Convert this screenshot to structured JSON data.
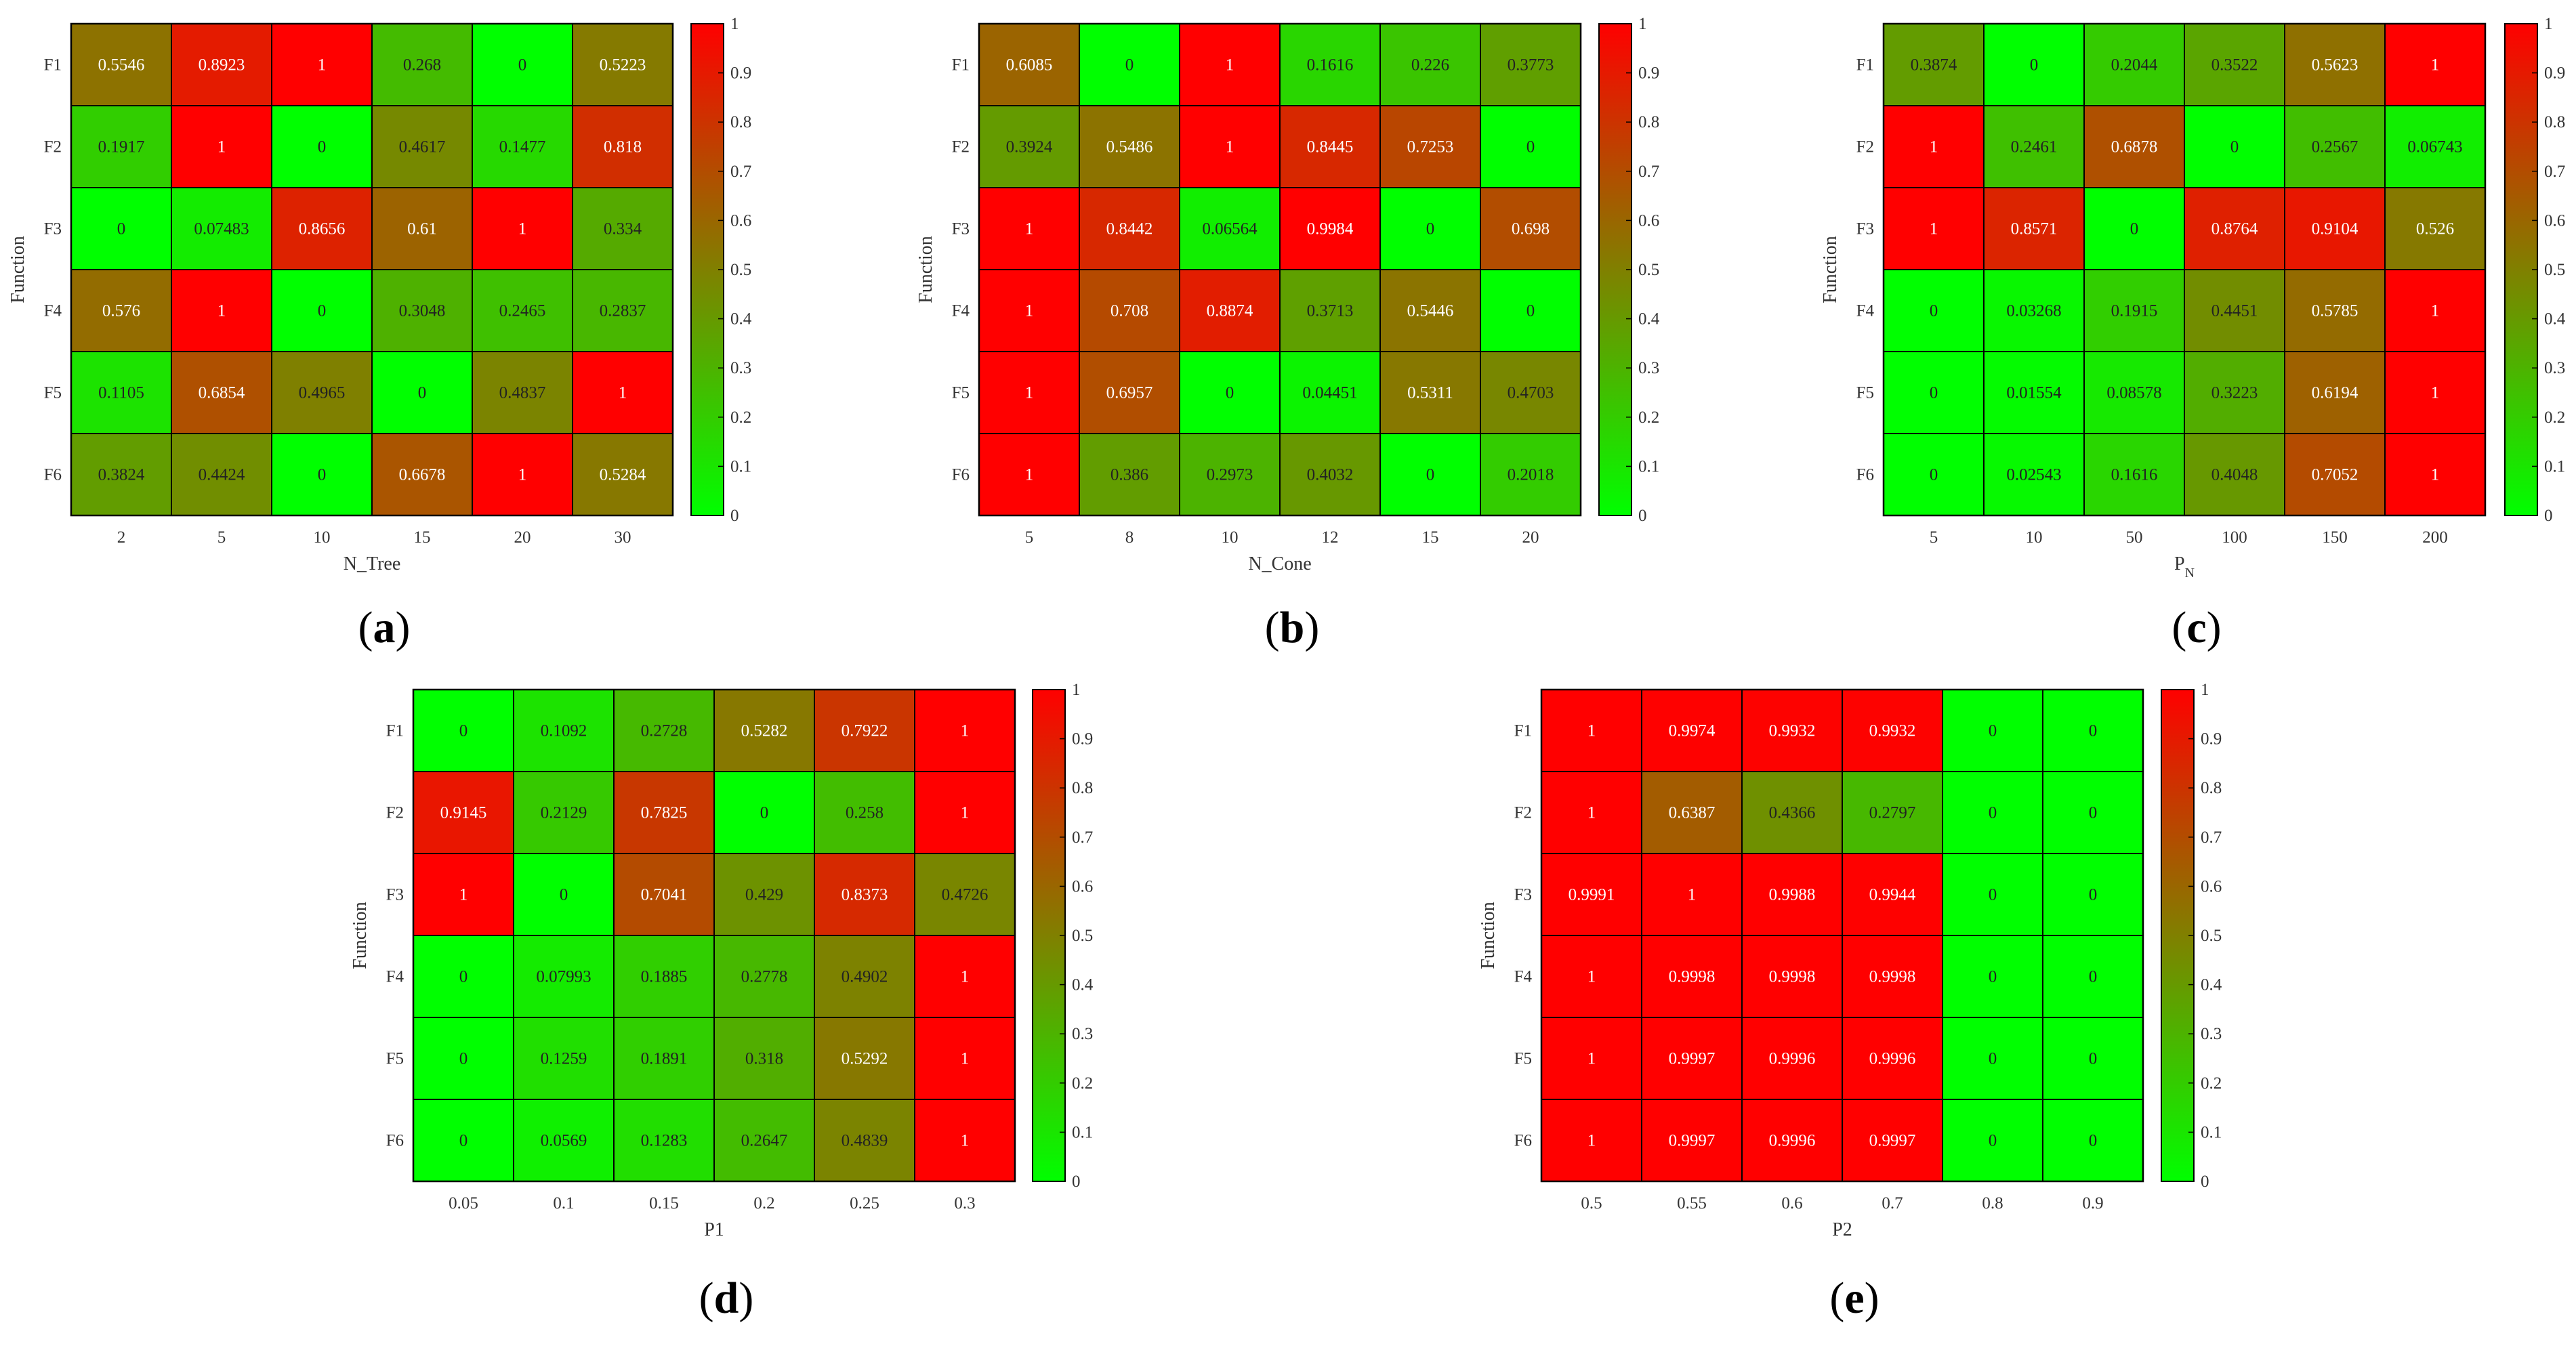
{
  "chart_data": [
    {
      "type": "heatmap",
      "panel_label": "(a)",
      "panel_letter": "a",
      "xlabel": "N_Tree",
      "ylabel": "Function",
      "xlabel_sub": "",
      "categories": [
        "2",
        "5",
        "10",
        "15",
        "20",
        "30"
      ],
      "rows": [
        "F1",
        "F2",
        "F3",
        "F4",
        "F5",
        "F6"
      ],
      "values": [
        [
          0.5546,
          0.8923,
          1,
          0.268,
          0,
          0.5223
        ],
        [
          0.1917,
          1,
          0,
          0.4617,
          0.1477,
          0.818
        ],
        [
          0,
          0.07483,
          0.8656,
          0.61,
          1,
          0.334
        ],
        [
          0.576,
          1,
          0,
          0.3048,
          0.2465,
          0.2837
        ],
        [
          0.1105,
          0.6854,
          0.4965,
          0,
          0.4837,
          1
        ],
        [
          0.3824,
          0.4424,
          0,
          0.6678,
          1,
          0.5284
        ]
      ],
      "labels": [
        [
          "0.5546",
          "0.8923",
          "1",
          "0.268",
          "0",
          "0.5223"
        ],
        [
          "0.1917",
          "1",
          "0",
          "0.4617",
          "0.1477",
          "0.818"
        ],
        [
          "0",
          "0.07483",
          "0.8656",
          "0.61",
          "1",
          "0.334"
        ],
        [
          "0.576",
          "1",
          "0",
          "0.3048",
          "0.2465",
          "0.2837"
        ],
        [
          "0.1105",
          "0.6854",
          "0.4965",
          "0",
          "0.4837",
          "1"
        ],
        [
          "0.3824",
          "0.4424",
          "0",
          "0.6678",
          "1",
          "0.5284"
        ]
      ],
      "colorbar": {
        "range": [
          0,
          1
        ],
        "ticks": [
          "0",
          "0.1",
          "0.2",
          "0.3",
          "0.4",
          "0.5",
          "0.6",
          "0.7",
          "0.8",
          "0.9",
          "1"
        ]
      }
    },
    {
      "type": "heatmap",
      "panel_label": "(b)",
      "panel_letter": "b",
      "xlabel": "N_Cone",
      "ylabel": "Function",
      "xlabel_sub": "",
      "categories": [
        "5",
        "8",
        "10",
        "12",
        "15",
        "20"
      ],
      "rows": [
        "F1",
        "F2",
        "F3",
        "F4",
        "F5",
        "F6"
      ],
      "values": [
        [
          0.6085,
          0,
          1,
          0.1616,
          0.226,
          0.3773
        ],
        [
          0.3924,
          0.5486,
          1,
          0.8445,
          0.7253,
          0
        ],
        [
          1,
          0.8442,
          0.06564,
          0.9984,
          0,
          0.698
        ],
        [
          1,
          0.708,
          0.8874,
          0.3713,
          0.5446,
          0
        ],
        [
          1,
          0.6957,
          0,
          0.04451,
          0.5311,
          0.4703
        ],
        [
          1,
          0.386,
          0.2973,
          0.4032,
          0,
          0.2018
        ]
      ],
      "labels": [
        [
          "0.6085",
          "0",
          "1",
          "0.1616",
          "0.226",
          "0.3773"
        ],
        [
          "0.3924",
          "0.5486",
          "1",
          "0.8445",
          "0.7253",
          "0"
        ],
        [
          "1",
          "0.8442",
          "0.06564",
          "0.9984",
          "0",
          "0.698"
        ],
        [
          "1",
          "0.708",
          "0.8874",
          "0.3713",
          "0.5446",
          "0"
        ],
        [
          "1",
          "0.6957",
          "0",
          "0.04451",
          "0.5311",
          "0.4703"
        ],
        [
          "1",
          "0.386",
          "0.2973",
          "0.4032",
          "0",
          "0.2018"
        ]
      ],
      "colorbar": {
        "range": [
          0,
          1
        ],
        "ticks": [
          "0",
          "0.1",
          "0.2",
          "0.3",
          "0.4",
          "0.5",
          "0.6",
          "0.7",
          "0.8",
          "0.9",
          "1"
        ]
      }
    },
    {
      "type": "heatmap",
      "panel_label": "(c)",
      "panel_letter": "c",
      "xlabel": "P",
      "ylabel": "Function",
      "xlabel_sub": "N",
      "categories": [
        "5",
        "10",
        "50",
        "100",
        "150",
        "200"
      ],
      "rows": [
        "F1",
        "F2",
        "F3",
        "F4",
        "F5",
        "F6"
      ],
      "values": [
        [
          0.3874,
          0,
          0.2044,
          0.3522,
          0.5623,
          1
        ],
        [
          1,
          0.2461,
          0.6878,
          0,
          0.2567,
          0.06743
        ],
        [
          1,
          0.8571,
          0,
          0.8764,
          0.9104,
          0.526
        ],
        [
          0,
          0.03268,
          0.1915,
          0.4451,
          0.5785,
          1
        ],
        [
          0,
          0.01554,
          0.08578,
          0.3223,
          0.6194,
          1
        ],
        [
          0,
          0.02543,
          0.1616,
          0.4048,
          0.7052,
          1
        ]
      ],
      "labels": [
        [
          "0.3874",
          "0",
          "0.2044",
          "0.3522",
          "0.5623",
          "1"
        ],
        [
          "1",
          "0.2461",
          "0.6878",
          "0",
          "0.2567",
          "0.06743"
        ],
        [
          "1",
          "0.8571",
          "0",
          "0.8764",
          "0.9104",
          "0.526"
        ],
        [
          "0",
          "0.03268",
          "0.1915",
          "0.4451",
          "0.5785",
          "1"
        ],
        [
          "0",
          "0.01554",
          "0.08578",
          "0.3223",
          "0.6194",
          "1"
        ],
        [
          "0",
          "0.02543",
          "0.1616",
          "0.4048",
          "0.7052",
          "1"
        ]
      ],
      "colorbar": {
        "range": [
          0,
          1
        ],
        "ticks": [
          "0",
          "0.1",
          "0.2",
          "0.3",
          "0.4",
          "0.5",
          "0.6",
          "0.7",
          "0.8",
          "0.9",
          "1"
        ]
      }
    },
    {
      "type": "heatmap",
      "panel_label": "(d)",
      "panel_letter": "d",
      "xlabel": "P1",
      "ylabel": "Function",
      "xlabel_sub": "",
      "categories": [
        "0.05",
        "0.1",
        "0.15",
        "0.2",
        "0.25",
        "0.3"
      ],
      "rows": [
        "F1",
        "F2",
        "F3",
        "F4",
        "F5",
        "F6"
      ],
      "values": [
        [
          0,
          0.1092,
          0.2728,
          0.5282,
          0.7922,
          1
        ],
        [
          0.9145,
          0.2129,
          0.7825,
          0,
          0.258,
          1
        ],
        [
          1,
          0,
          0.7041,
          0.429,
          0.8373,
          0.4726
        ],
        [
          0,
          0.07993,
          0.1885,
          0.2778,
          0.4902,
          1
        ],
        [
          0,
          0.1259,
          0.1891,
          0.318,
          0.5292,
          1
        ],
        [
          0,
          0.0569,
          0.1283,
          0.2647,
          0.4839,
          1
        ]
      ],
      "labels": [
        [
          "0",
          "0.1092",
          "0.2728",
          "0.5282",
          "0.7922",
          "1"
        ],
        [
          "0.9145",
          "0.2129",
          "0.7825",
          "0",
          "0.258",
          "1"
        ],
        [
          "1",
          "0",
          "0.7041",
          "0.429",
          "0.8373",
          "0.4726"
        ],
        [
          "0",
          "0.07993",
          "0.1885",
          "0.2778",
          "0.4902",
          "1"
        ],
        [
          "0",
          "0.1259",
          "0.1891",
          "0.318",
          "0.5292",
          "1"
        ],
        [
          "0",
          "0.0569",
          "0.1283",
          "0.2647",
          "0.4839",
          "1"
        ]
      ],
      "colorbar": {
        "range": [
          0,
          1
        ],
        "ticks": [
          "0",
          "0.1",
          "0.2",
          "0.3",
          "0.4",
          "0.5",
          "0.6",
          "0.7",
          "0.8",
          "0.9",
          "1"
        ]
      }
    },
    {
      "type": "heatmap",
      "panel_label": "(e)",
      "panel_letter": "e",
      "xlabel": "P2",
      "ylabel": "Function",
      "xlabel_sub": "",
      "categories": [
        "0.5",
        "0.55",
        "0.6",
        "0.7",
        "0.8",
        "0.9"
      ],
      "rows": [
        "F1",
        "F2",
        "F3",
        "F4",
        "F5",
        "F6"
      ],
      "values": [
        [
          1,
          0.9974,
          0.9932,
          0.9932,
          0,
          0
        ],
        [
          1,
          0.6387,
          0.4366,
          0.2797,
          0,
          0
        ],
        [
          0.9991,
          1,
          0.9988,
          0.9944,
          0,
          0
        ],
        [
          1,
          0.9998,
          0.9998,
          0.9998,
          0,
          0
        ],
        [
          1,
          0.9997,
          0.9996,
          0.9996,
          0,
          0
        ],
        [
          1,
          0.9997,
          0.9996,
          0.9997,
          0,
          0
        ]
      ],
      "labels": [
        [
          "1",
          "0.9974",
          "0.9932",
          "0.9932",
          "0",
          "0"
        ],
        [
          "1",
          "0.6387",
          "0.4366",
          "0.2797",
          "0",
          "0"
        ],
        [
          "0.9991",
          "1",
          "0.9988",
          "0.9944",
          "0",
          "0"
        ],
        [
          "1",
          "0.9998",
          "0.9998",
          "0.9998",
          "0",
          "0"
        ],
        [
          "1",
          "0.9997",
          "0.9996",
          "0.9996",
          "0",
          "0"
        ],
        [
          "1",
          "0.9997",
          "0.9996",
          "0.9997",
          "0",
          "0"
        ]
      ],
      "colorbar": {
        "range": [
          0,
          1
        ],
        "ticks": [
          "0",
          "0.1",
          "0.2",
          "0.3",
          "0.4",
          "0.5",
          "0.6",
          "0.7",
          "0.8",
          "0.9",
          "1"
        ]
      }
    }
  ],
  "colors": {
    "low": "#00ff00",
    "high": "#ff0000",
    "mid": "#808000",
    "grid": "#000000"
  }
}
